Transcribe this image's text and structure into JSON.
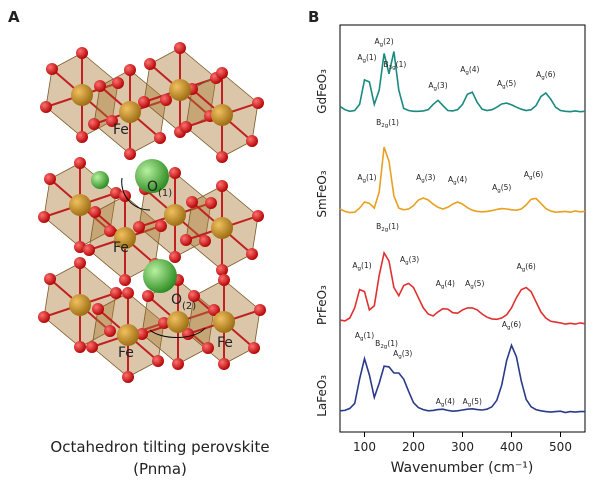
{
  "panel_a": {
    "label": "A",
    "atom_labels": [
      {
        "text": "Fe"
      },
      {
        "text": "Fe"
      },
      {
        "text": "Fe"
      },
      {
        "text": "Fe"
      },
      {
        "text": "O",
        "sub": "(1)"
      },
      {
        "text": "O",
        "sub": "(2)"
      }
    ],
    "caption": [
      "Octahedron tilting perovskite",
      "(Pnma)"
    ]
  },
  "chart_data": {
    "type": "line",
    "panel_label": "B",
    "xlabel": "Wavenumber (cm⁻¹)",
    "x": [
      50,
      60,
      70,
      80,
      90,
      100,
      110,
      120,
      130,
      140,
      150,
      160,
      170,
      180,
      190,
      200,
      210,
      220,
      230,
      240,
      250,
      260,
      270,
      280,
      290,
      300,
      310,
      320,
      330,
      340,
      350,
      360,
      370,
      380,
      390,
      400,
      410,
      420,
      430,
      440,
      450,
      460,
      470,
      480,
      490,
      500,
      510,
      520,
      530,
      540,
      550
    ],
    "xlim": [
      50,
      550
    ],
    "xticks": [
      100,
      200,
      300,
      400,
      500
    ],
    "ylim": [
      0,
      100
    ],
    "series": [
      {
        "name": "GdFeO₃",
        "color": "#1a8a80",
        "values": [
          80.0,
          79.2,
          78.8,
          79.0,
          80.5,
          86.5,
          86.0,
          80.5,
          84.0,
          93.0,
          88.0,
          93.5,
          84.0,
          79.5,
          79.0,
          78.8,
          78.8,
          78.9,
          79.2,
          80.5,
          81.5,
          80.2,
          79.0,
          78.9,
          79.2,
          80.5,
          83.0,
          83.5,
          81.0,
          79.3,
          79.0,
          79.2,
          79.8,
          80.6,
          80.8,
          80.4,
          79.8,
          79.3,
          79.0,
          79.2,
          80.2,
          82.4,
          83.3,
          81.8,
          79.8,
          79.0,
          78.8,
          78.7,
          78.9,
          78.7,
          78.8
        ],
        "annotations": [
          {
            "text": "A",
            "sub": "g",
            "suffix": "(1)",
            "x": 105,
            "y": 91.4
          },
          {
            "text": "A",
            "sub": "g",
            "suffix": "(2)",
            "x": 140,
            "y": 95.3
          },
          {
            "text": "B",
            "sub": "3g",
            "suffix": "(1)",
            "x": 162,
            "y": 89.7
          },
          {
            "text": "A",
            "sub": "g",
            "suffix": "(3)",
            "x": 250,
            "y": 84.5
          },
          {
            "text": "A",
            "sub": "g",
            "suffix": "(4)",
            "x": 315,
            "y": 88.5
          },
          {
            "text": "A",
            "sub": "g",
            "suffix": "(5)",
            "x": 390,
            "y": 85.0
          },
          {
            "text": "A",
            "sub": "g",
            "suffix": "(6)",
            "x": 470,
            "y": 87.2
          },
          {
            "text": "B",
            "sub": "2g",
            "suffix": "(1)",
            "x": 147,
            "y": 75.4
          }
        ]
      },
      {
        "name": "SmFeO₃",
        "color": "#e8a020",
        "values": [
          54.8,
          54.2,
          53.9,
          54.0,
          55.0,
          56.5,
          56.2,
          55.0,
          59.0,
          70.0,
          66.5,
          58.0,
          55.0,
          54.6,
          54.8,
          55.6,
          57.0,
          57.5,
          57.0,
          56.0,
          55.2,
          54.8,
          55.2,
          56.0,
          56.5,
          56.0,
          55.1,
          54.5,
          54.2,
          54.1,
          54.2,
          54.4,
          54.7,
          54.9,
          54.8,
          54.6,
          54.5,
          54.8,
          55.8,
          57.2,
          57.4,
          56.2,
          54.9,
          54.3,
          54.0,
          54.1,
          54.2,
          54.0,
          54.3,
          54.1,
          54.2
        ],
        "annotations": [
          {
            "text": "A",
            "sub": "g",
            "suffix": "(1)",
            "x": 105,
            "y": 61.9
          },
          {
            "text": "A",
            "sub": "g",
            "suffix": "(3)",
            "x": 225,
            "y": 61.9
          },
          {
            "text": "A",
            "sub": "g",
            "suffix": "(4)",
            "x": 290,
            "y": 61.4
          },
          {
            "text": "A",
            "sub": "g",
            "suffix": "(5)",
            "x": 380,
            "y": 59.5
          },
          {
            "text": "A",
            "sub": "g",
            "suffix": "(6)",
            "x": 445,
            "y": 62.7
          },
          {
            "text": "B",
            "sub": "2g",
            "suffix": "(1)",
            "x": 147,
            "y": 49.9
          }
        ]
      },
      {
        "name": "PrFeO₃",
        "color": "#e03030",
        "values": [
          27.5,
          27.3,
          28.0,
          30.5,
          35.0,
          34.5,
          30.0,
          31.0,
          38.5,
          44.0,
          42.0,
          35.5,
          33.5,
          36.0,
          36.5,
          35.5,
          33.0,
          30.5,
          29.0,
          28.5,
          29.5,
          30.3,
          30.2,
          29.3,
          29.2,
          30.0,
          30.5,
          30.5,
          30.0,
          29.0,
          28.2,
          27.8,
          27.7,
          28.0,
          28.8,
          30.5,
          33.0,
          35.0,
          35.5,
          34.5,
          32.0,
          29.5,
          28.0,
          27.2,
          27.0,
          26.8,
          26.5,
          26.7,
          26.5,
          26.8,
          26.6
        ],
        "annotations": [
          {
            "text": "A",
            "sub": "g",
            "suffix": "(1)",
            "x": 95,
            "y": 40.3
          },
          {
            "text": "A",
            "sub": "g",
            "suffix": "(3)",
            "x": 192,
            "y": 41.8
          },
          {
            "text": "A",
            "sub": "g",
            "suffix": "(4)",
            "x": 265,
            "y": 35.9
          },
          {
            "text": "A",
            "sub": "g",
            "suffix": "(5)",
            "x": 325,
            "y": 35.9
          },
          {
            "text": "A",
            "sub": "g",
            "suffix": "(6)",
            "x": 430,
            "y": 40.0
          }
        ]
      },
      {
        "name": "LaFeO₃",
        "color": "#2a3a8a",
        "values": [
          5.2,
          5.3,
          5.8,
          7.0,
          13.0,
          18.0,
          14.0,
          8.5,
          12.0,
          16.2,
          16.0,
          14.5,
          14.5,
          13.0,
          10.0,
          7.2,
          6.0,
          5.5,
          5.2,
          5.3,
          5.5,
          5.6,
          5.3,
          5.1,
          5.2,
          5.4,
          5.6,
          5.7,
          5.5,
          5.4,
          5.6,
          6.2,
          7.8,
          11.5,
          17.5,
          21.3,
          18.5,
          12.5,
          8.0,
          6.2,
          5.5,
          5.2,
          5.0,
          4.9,
          5.0,
          5.1,
          4.8,
          5.0,
          4.9,
          5.0,
          5.0
        ],
        "annotations": [
          {
            "text": "A",
            "sub": "g",
            "suffix": "(1)",
            "x": 100,
            "y": 23.1
          },
          {
            "text": "B",
            "sub": "2g",
            "suffix": "(1)",
            "x": 145,
            "y": 21.1
          },
          {
            "text": "A",
            "sub": "g",
            "suffix": "(3)",
            "x": 178,
            "y": 18.7
          },
          {
            "text": "A",
            "sub": "g",
            "suffix": "(4)",
            "x": 265,
            "y": 6.9
          },
          {
            "text": "A",
            "sub": "g",
            "suffix": "(5)",
            "x": 320,
            "y": 6.9
          },
          {
            "text": "A",
            "sub": "g",
            "suffix": "(6)",
            "x": 400,
            "y": 25.8
          }
        ]
      }
    ]
  }
}
